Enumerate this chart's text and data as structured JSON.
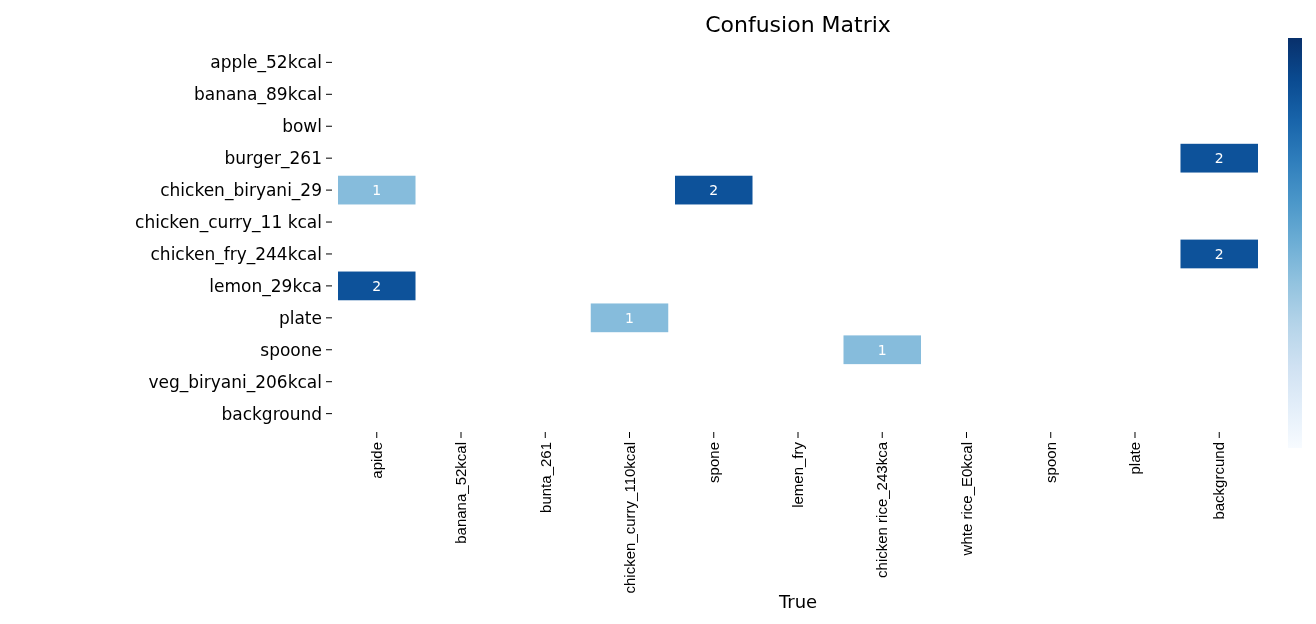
{
  "chart_data": {
    "type": "heatmap",
    "title": "Confusion Matrix",
    "xlabel": "True",
    "data_labels": true,
    "categories": [
      "apide",
      "banana_52kcal",
      "bunta_261",
      "chicken_curry_110kcal",
      "spone",
      "lemen_fry",
      "chicken rice_243kca",
      "whte rice_E0kcal",
      "spoon",
      "plate",
      "backgrcund"
    ],
    "y_categories": [
      "apple_52kcal",
      "banana_89kcal",
      "bowl",
      "burger_261",
      "chicken_biryani_29",
      "chicken_curry_11 kcal",
      "chicken_fry_244kcal",
      "lemon_29kca",
      "plate",
      "spoone",
      "veg_biryani_206kcal",
      "background"
    ],
    "cells": [
      [
        null,
        null,
        null,
        null,
        null,
        null,
        null,
        null,
        null,
        null,
        null
      ],
      [
        null,
        null,
        null,
        null,
        null,
        null,
        null,
        null,
        null,
        null,
        null
      ],
      [
        null,
        null,
        null,
        null,
        null,
        null,
        null,
        null,
        null,
        null,
        null
      ],
      [
        null,
        null,
        null,
        null,
        null,
        null,
        null,
        null,
        null,
        null,
        2
      ],
      [
        1,
        null,
        null,
        null,
        2,
        null,
        null,
        null,
        null,
        null,
        null
      ],
      [
        null,
        null,
        null,
        null,
        null,
        null,
        null,
        null,
        null,
        null,
        null
      ],
      [
        null,
        null,
        null,
        null,
        null,
        null,
        null,
        null,
        null,
        null,
        2
      ],
      [
        2,
        null,
        null,
        null,
        null,
        null,
        null,
        null,
        null,
        null,
        null
      ],
      [
        null,
        null,
        null,
        1,
        null,
        null,
        null,
        null,
        null,
        null,
        null
      ],
      [
        null,
        null,
        null,
        null,
        null,
        null,
        1,
        null,
        null,
        null,
        null
      ],
      [
        null,
        null,
        null,
        null,
        null,
        null,
        null,
        null,
        null,
        null,
        null
      ],
      [
        null,
        null,
        null,
        null,
        null,
        null,
        null,
        null,
        null,
        null,
        null
      ]
    ]
  }
}
